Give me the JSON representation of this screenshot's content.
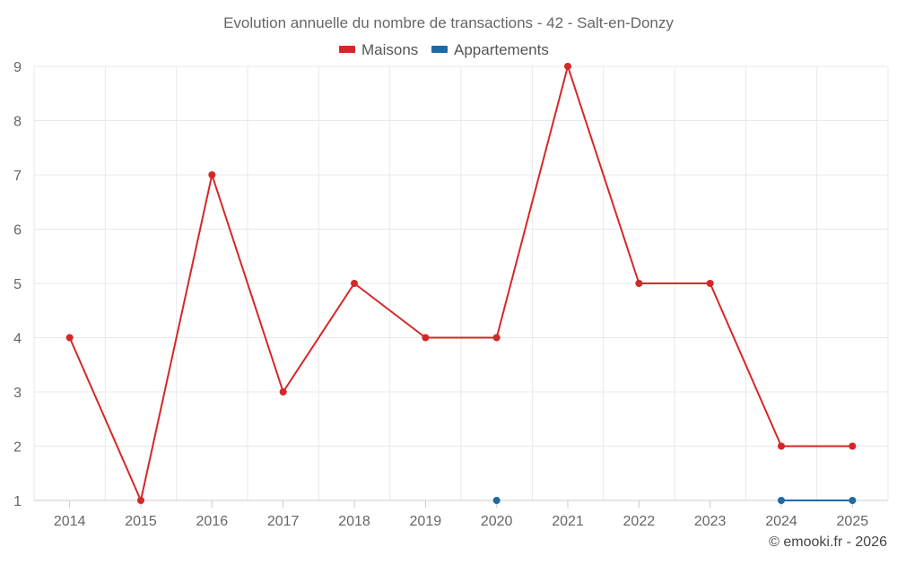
{
  "chart_data": {
    "type": "line",
    "title": "Evolution annuelle du nombre de transactions - 42 - Salt-en-Donzy",
    "xlabel": "",
    "ylabel": "",
    "categories": [
      "2014",
      "2015",
      "2016",
      "2017",
      "2018",
      "2019",
      "2020",
      "2021",
      "2022",
      "2023",
      "2024",
      "2025"
    ],
    "ylim": [
      1,
      9
    ],
    "yticks": [
      1,
      2,
      3,
      4,
      5,
      6,
      7,
      8,
      9
    ],
    "grid": true,
    "legend_position": "top-center",
    "series": [
      {
        "name": "Maisons",
        "color": "#d62728",
        "values": [
          4,
          1,
          7,
          3,
          5,
          4,
          4,
          9,
          5,
          5,
          2,
          2
        ]
      },
      {
        "name": "Appartements",
        "color": "#1f6aa5",
        "values": [
          null,
          null,
          null,
          null,
          null,
          null,
          1,
          null,
          null,
          null,
          1,
          1
        ]
      }
    ],
    "credit": "© emooki.fr - 2026"
  }
}
